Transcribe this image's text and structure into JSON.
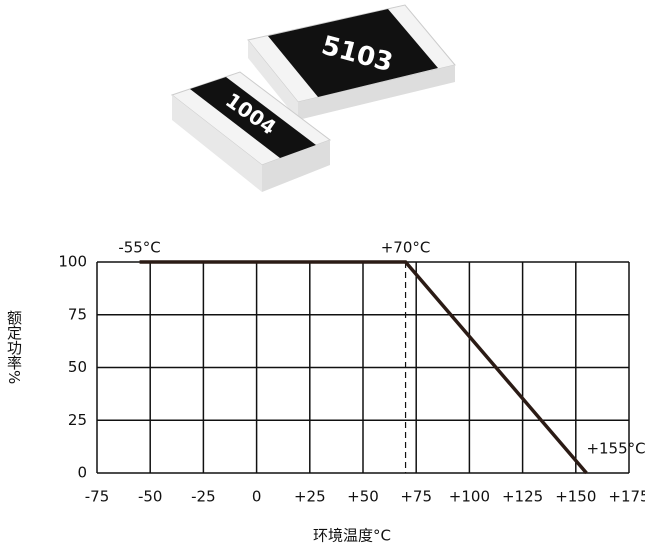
{
  "image_labels": [
    "5103",
    "1004"
  ],
  "chart_data": {
    "type": "line",
    "x_label": "环境温度°C",
    "y_label": "额定功率%",
    "series": [
      {
        "color": "#2b1b15",
        "x": [
          -55,
          70,
          155
        ],
        "values": [
          100,
          100,
          0
        ]
      }
    ],
    "xlim": [
      -75,
      175
    ],
    "xticks": [
      -75,
      -50,
      -25,
      0,
      {
        "value": 25,
        "label": "+25"
      },
      {
        "value": 50,
        "label": "+50"
      },
      {
        "value": 75,
        "label": "+75"
      },
      {
        "value": 100,
        "label": "+100"
      },
      {
        "value": 125,
        "label": "+125"
      },
      {
        "value": 150,
        "label": "+150"
      },
      {
        "value": 175,
        "label": "+175"
      }
    ],
    "ylim": [
      0,
      100
    ],
    "yticks": [
      0,
      25,
      50,
      75,
      100
    ],
    "grid": true,
    "annotations": [
      {
        "text": "-55°C",
        "x": -55,
        "y": 100
      },
      {
        "text": "+70°C",
        "x": 70,
        "y": 100
      },
      {
        "text": "+155°C",
        "x": 155,
        "y": 0
      }
    ],
    "reference_lines": [
      {
        "x": 70,
        "style": "dashed"
      }
    ]
  }
}
